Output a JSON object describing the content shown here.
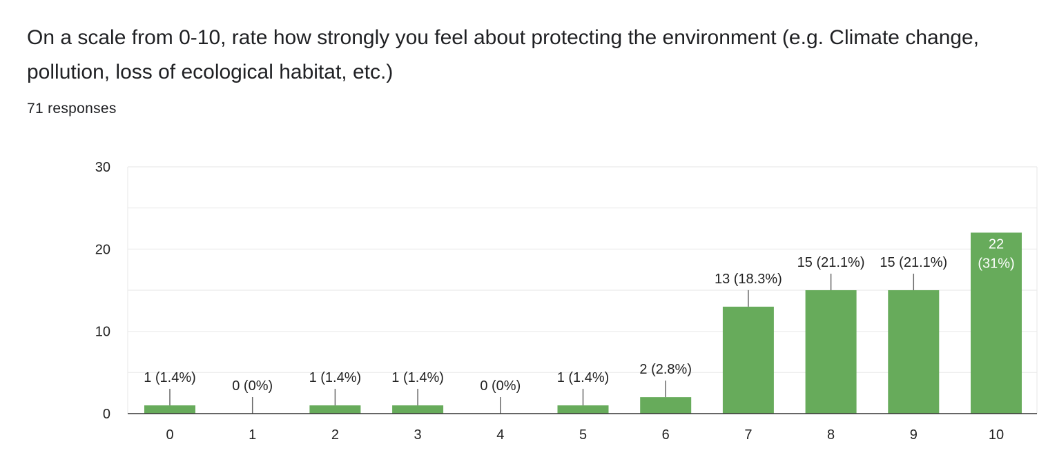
{
  "question": {
    "title": "On a scale from 0-10, rate how strongly you feel about protecting the environment (e.g. Climate change, pollution, loss of ecological habitat, etc.)",
    "responses": "71 responses"
  },
  "colors": {
    "bar": "#67ab5b",
    "text": "#222222",
    "grid": "#ebebeb",
    "axis": "#333333",
    "leader": "#666666"
  },
  "chart_data": {
    "type": "bar",
    "title": "",
    "xlabel": "",
    "ylabel": "",
    "categories": [
      "0",
      "1",
      "2",
      "3",
      "4",
      "5",
      "6",
      "7",
      "8",
      "9",
      "10"
    ],
    "values": [
      1,
      0,
      1,
      1,
      0,
      1,
      2,
      13,
      15,
      15,
      22
    ],
    "data_labels": [
      "1 (1.4%)",
      "0 (0%)",
      "1 (1.4%)",
      "1 (1.4%)",
      "0 (0%)",
      "1 (1.4%)",
      "2 (2.8%)",
      "13 (18.3%)",
      "15 (21.1%)",
      "15 (21.1%)",
      "22 (31%)"
    ],
    "ylim": [
      0,
      30
    ],
    "yticks": [
      0,
      10,
      20,
      30
    ],
    "grid": true,
    "legend": "none"
  }
}
